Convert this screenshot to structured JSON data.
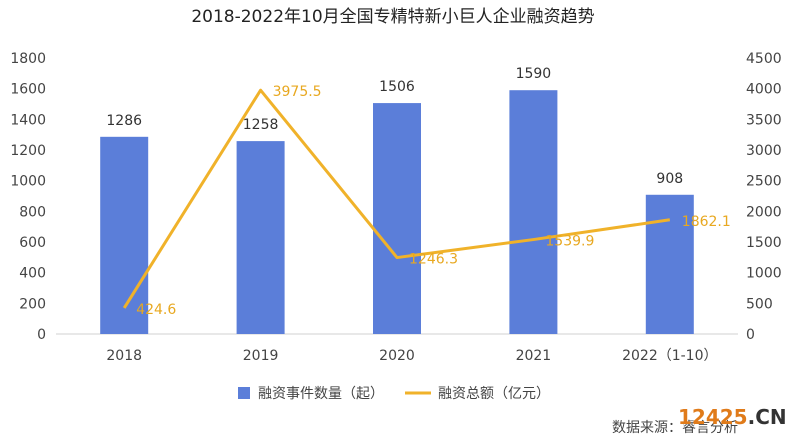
{
  "chart_data": {
    "type": "bar+line",
    "title": "2018-2022年10月全国专精特新小巨人企业融资趋势",
    "categories": [
      "2018",
      "2019",
      "2020",
      "2021",
      "2022（1-10）"
    ],
    "series": [
      {
        "name": "融资事件数量（起）",
        "type": "bar",
        "axis": "left",
        "values": [
          1286,
          1258,
          1506,
          1590,
          908
        ],
        "color": "#5b7ed9"
      },
      {
        "name": "融资总额（亿元）",
        "type": "line",
        "axis": "right",
        "values": [
          424.6,
          3975.5,
          1246.3,
          1539.9,
          1862.1
        ],
        "color": "#f0b22a"
      }
    ],
    "y_left": {
      "min": 0,
      "max": 1800,
      "step": 200,
      "ticks": [
        "0",
        "200",
        "400",
        "600",
        "800",
        "1000",
        "1200",
        "1400",
        "1600",
        "1800"
      ]
    },
    "y_right": {
      "min": 0,
      "max": 4500,
      "step": 500,
      "ticks": [
        "0",
        "500",
        "1000",
        "1500",
        "2000",
        "2500",
        "3000",
        "3500",
        "4000",
        "4500"
      ]
    },
    "bar_labels": [
      "1286",
      "1258",
      "1506",
      "1590",
      "908"
    ],
    "line_labels": [
      "424.6",
      "3975.5",
      "1246.3",
      "1539.9",
      "1862.1"
    ],
    "legend_position": "bottom",
    "grid": false
  },
  "source_text": "数据来源：睿言分析",
  "watermark": {
    "part1": "12425",
    "part2": ".CN"
  }
}
